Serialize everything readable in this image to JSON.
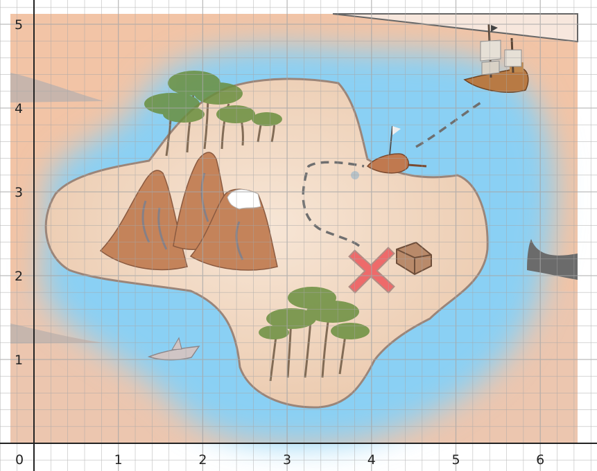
{
  "map": {
    "x_axis": {
      "min": 0,
      "max": 6,
      "tick_labels": [
        "0",
        "1",
        "2",
        "3",
        "4",
        "5",
        "6"
      ]
    },
    "y_axis": {
      "min": 1,
      "max": 5,
      "tick_labels": [
        "1",
        "2",
        "3",
        "4",
        "5"
      ]
    },
    "grid": {
      "major_step": 1,
      "minor_step": 0.2
    },
    "markers": [
      {
        "name": "x-marks-the-spot",
        "x": 4.0,
        "y": 2.05
      },
      {
        "name": "treasure-chest",
        "x": 4.5,
        "y": 2.15
      },
      {
        "name": "pirate-ship",
        "x": 5.4,
        "y": 4.3
      },
      {
        "name": "rowboat",
        "x": 4.1,
        "y": 3.3
      },
      {
        "name": "shark",
        "x": 1.75,
        "y": 1.1
      }
    ],
    "colors": {
      "land": "#f0d6c0",
      "water": "#8ad0f4",
      "background": "#f2c4a6",
      "grid": "#a6a6a6",
      "axis": "#222222",
      "x_marker": "#ee6a6a"
    }
  }
}
